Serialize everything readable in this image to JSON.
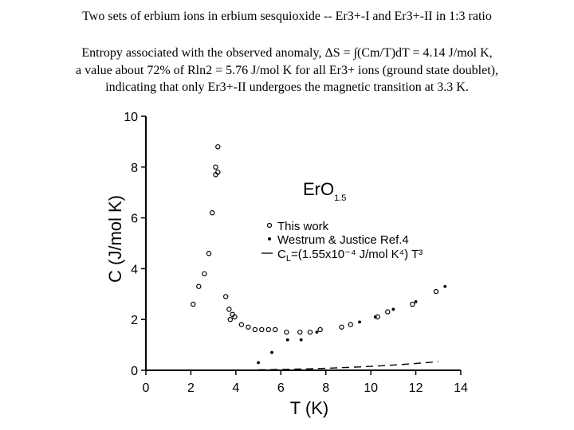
{
  "header": {
    "line1": "Two sets of erbium ions in erbium sesquioxide -- Er3+-I and Er3+-II in 1:3 ratio",
    "line2": "Entropy associated with the observed anomaly, ΔS = ∫(Cm/T)dT = 4.14 J/mol K,",
    "line3": "a value about 72% of Rln2 = 5.76 J/mol K for all Er3+ ions (ground state doublet),",
    "line4": "indicating that only Er3+-II undergoes the magnetic transition at 3.3 K."
  },
  "chart_data": {
    "type": "scatter",
    "annotation_main": "ErO",
    "annotation_sub": "1.5",
    "xlabel": "T  (K)",
    "ylabel": "C  (J/mol  K)",
    "xlim": [
      0,
      14
    ],
    "ylim": [
      0,
      10
    ],
    "x_ticks": [
      "0",
      "2",
      "4",
      "6",
      "8",
      "10",
      "12",
      "14"
    ],
    "y_ticks": [
      "0",
      "2",
      "4",
      "6",
      "8",
      "10"
    ],
    "legend": {
      "this_work": "This  work",
      "westrum": "Westrum  &  Justice   Ref.4",
      "lattice_pre": "C",
      "lattice_sub": "L",
      "lattice_post": "=(1.55x10⁻⁴ J/mol K⁴) T³"
    },
    "series": [
      {
        "name": "This  work",
        "marker": "open-circle",
        "x": [
          2.1,
          2.35,
          2.6,
          2.8,
          2.95,
          3.1,
          3.2,
          3.1,
          3.2,
          3.55,
          3.7,
          3.85,
          3.75,
          3.95,
          4.25,
          4.55,
          4.85,
          5.15,
          5.45,
          5.75,
          6.25,
          6.85,
          7.3,
          7.75,
          8.7,
          9.1,
          10.3,
          10.75,
          11.85,
          12.9
        ],
        "y": [
          2.6,
          3.3,
          3.8,
          4.6,
          6.2,
          7.7,
          7.8,
          8.0,
          8.8,
          2.9,
          2.4,
          2.2,
          2.0,
          2.1,
          1.8,
          1.7,
          1.6,
          1.6,
          1.6,
          1.6,
          1.5,
          1.5,
          1.5,
          1.6,
          1.7,
          1.8,
          2.1,
          2.3,
          2.6,
          3.1
        ]
      },
      {
        "name": "Westrum  &  Justice   Ref.4",
        "marker": "filled-dot",
        "x": [
          5.0,
          5.6,
          6.3,
          6.9,
          7.6,
          9.5,
          10.2,
          11.0,
          12.0,
          13.3
        ],
        "y": [
          0.3,
          0.7,
          1.2,
          1.2,
          1.5,
          1.9,
          2.1,
          2.4,
          2.7,
          3.3
        ]
      },
      {
        "name": "C_L lattice",
        "marker": "dashed-line",
        "coefficient": 0.000155,
        "x_range": [
          5.0,
          13.0
        ]
      }
    ]
  }
}
